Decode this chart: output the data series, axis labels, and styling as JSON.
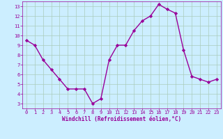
{
  "x": [
    0,
    1,
    2,
    3,
    4,
    5,
    6,
    7,
    8,
    9,
    10,
    11,
    12,
    13,
    14,
    15,
    16,
    17,
    18,
    19,
    20,
    21,
    22,
    23
  ],
  "y": [
    9.5,
    9.0,
    7.5,
    6.5,
    5.5,
    4.5,
    4.5,
    4.5,
    3.0,
    3.5,
    7.5,
    9.0,
    9.0,
    10.5,
    11.5,
    12.0,
    13.2,
    12.7,
    12.3,
    8.5,
    5.8,
    5.5,
    5.2,
    5.5
  ],
  "line_color": "#990099",
  "marker": "D",
  "marker_size": 2.2,
  "bg_color": "#cceeff",
  "grid_color": "#aaccbb",
  "xlabel": "Windchill (Refroidissement éolien,°C)",
  "xlabel_color": "#990099",
  "tick_color": "#990099",
  "xlim": [
    -0.5,
    23.5
  ],
  "ylim": [
    2.5,
    13.5
  ],
  "yticks": [
    3,
    4,
    5,
    6,
    7,
    8,
    9,
    10,
    11,
    12,
    13
  ],
  "xticks": [
    0,
    1,
    2,
    3,
    4,
    5,
    6,
    7,
    8,
    9,
    10,
    11,
    12,
    13,
    14,
    15,
    16,
    17,
    18,
    19,
    20,
    21,
    22,
    23
  ],
  "tick_fontsize": 5.0,
  "xlabel_fontsize": 5.5,
  "linewidth": 1.0
}
